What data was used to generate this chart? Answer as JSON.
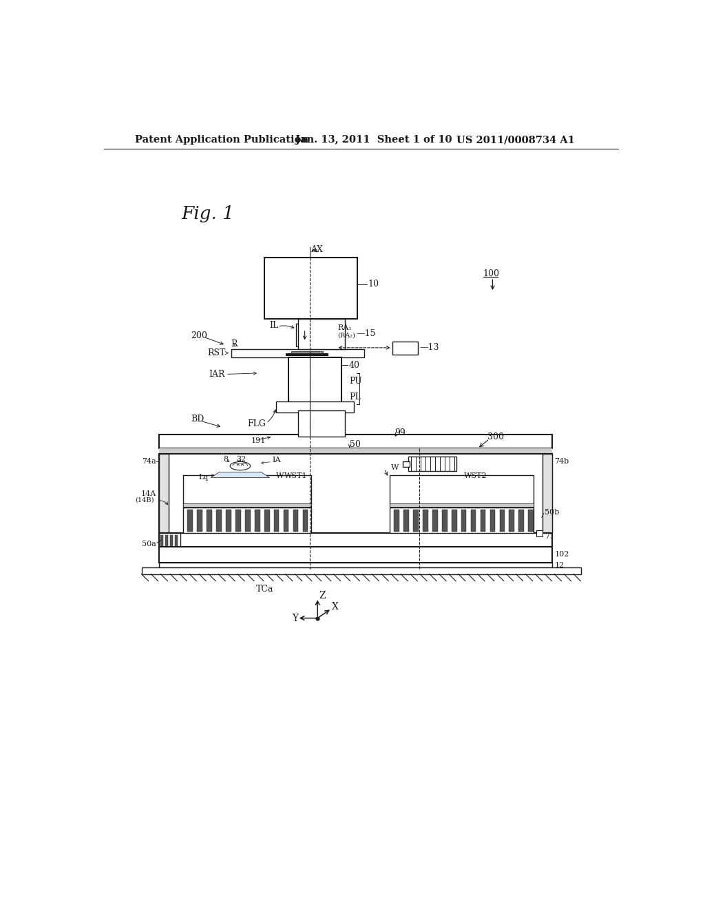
{
  "bg_color": "#ffffff",
  "header_left": "Patent Application Publication",
  "header_mid": "Jan. 13, 2011  Sheet 1 of 10",
  "header_right": "US 2011/0008734 A1",
  "fig_label": "Fig. 1",
  "header_fontsize": 10.5,
  "body_fontsize": 9,
  "small_fontsize": 8
}
